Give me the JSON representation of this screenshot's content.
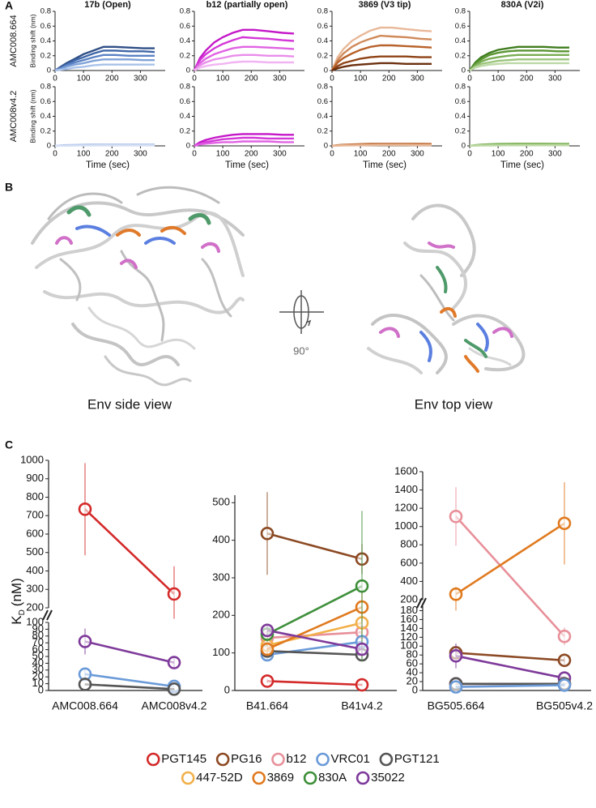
{
  "panels": {
    "a": "A",
    "b": "B",
    "c": "C"
  },
  "structure": {
    "side_view": "Env side view",
    "top_view": "Env top view",
    "rotation": "90°"
  },
  "chart_data": [
    {
      "type": "line",
      "title": "17b (Open)",
      "row_label": "AMC008.664",
      "ylabel": "Binding shift (nm)",
      "x": [
        0,
        20,
        40,
        70,
        100,
        135,
        170,
        210,
        260,
        310,
        350
      ],
      "xlim": [
        0,
        370
      ],
      "xticks": [
        0,
        100,
        200,
        300
      ],
      "ylim": [
        0,
        0.8
      ],
      "yticks": [
        0,
        0.2,
        0.4,
        0.6,
        0.8
      ],
      "series": [
        {
          "color": "#2f4f86",
          "values": [
            0,
            0.05,
            0.1,
            0.16,
            0.22,
            0.27,
            0.32,
            0.32,
            0.31,
            0.3,
            0.3
          ]
        },
        {
          "color": "#3f66a8",
          "values": [
            0,
            0.04,
            0.08,
            0.14,
            0.18,
            0.23,
            0.27,
            0.27,
            0.26,
            0.26,
            0.25
          ]
        },
        {
          "color": "#5a82c4",
          "values": [
            0,
            0.03,
            0.07,
            0.11,
            0.14,
            0.18,
            0.21,
            0.21,
            0.2,
            0.2,
            0.2
          ]
        },
        {
          "color": "#7fa2d8",
          "values": [
            0,
            0.02,
            0.05,
            0.08,
            0.1,
            0.13,
            0.15,
            0.15,
            0.15,
            0.14,
            0.14
          ]
        },
        {
          "color": "#a9c2ea",
          "values": [
            0,
            0.01,
            0.02,
            0.04,
            0.05,
            0.07,
            0.08,
            0.08,
            0.08,
            0.08,
            0.08
          ]
        }
      ]
    },
    {
      "type": "line",
      "title": "b12 (partially open)",
      "x": [
        0,
        20,
        40,
        70,
        100,
        135,
        170,
        210,
        260,
        310,
        350
      ],
      "xlim": [
        0,
        370
      ],
      "xticks": [
        0,
        100,
        200,
        300
      ],
      "ylim": [
        0,
        0.8
      ],
      "yticks": [
        0,
        0.2,
        0.4,
        0.6,
        0.8
      ],
      "series": [
        {
          "color": "#c418c8",
          "values": [
            0,
            0.17,
            0.27,
            0.38,
            0.45,
            0.51,
            0.55,
            0.55,
            0.53,
            0.51,
            0.5
          ]
        },
        {
          "color": "#d437d8",
          "values": [
            0,
            0.14,
            0.22,
            0.3,
            0.36,
            0.41,
            0.45,
            0.44,
            0.43,
            0.41,
            0.4
          ]
        },
        {
          "color": "#e063e3",
          "values": [
            0,
            0.1,
            0.16,
            0.22,
            0.26,
            0.3,
            0.32,
            0.32,
            0.31,
            0.3,
            0.29
          ]
        },
        {
          "color": "#e98ceb",
          "values": [
            0,
            0.07,
            0.11,
            0.15,
            0.17,
            0.2,
            0.21,
            0.21,
            0.2,
            0.2,
            0.19
          ]
        },
        {
          "color": "#f1b4f2",
          "values": [
            0,
            0.04,
            0.06,
            0.08,
            0.09,
            0.11,
            0.12,
            0.12,
            0.11,
            0.11,
            0.11
          ]
        }
      ]
    },
    {
      "type": "line",
      "title": "3869 (V3 tip)",
      "x": [
        0,
        20,
        40,
        70,
        100,
        135,
        170,
        210,
        260,
        310,
        350
      ],
      "xlim": [
        0,
        370
      ],
      "xticks": [
        0,
        100,
        200,
        300
      ],
      "ylim": [
        0,
        0.8
      ],
      "yticks": [
        0,
        0.2,
        0.4,
        0.6,
        0.8
      ],
      "series": [
        {
          "color": "#e8b898",
          "values": [
            0,
            0.18,
            0.29,
            0.4,
            0.47,
            0.54,
            0.58,
            0.58,
            0.56,
            0.54,
            0.53
          ]
        },
        {
          "color": "#d08a5a",
          "values": [
            0,
            0.14,
            0.23,
            0.32,
            0.38,
            0.43,
            0.47,
            0.46,
            0.45,
            0.43,
            0.42
          ]
        },
        {
          "color": "#b8622a",
          "values": [
            0,
            0.11,
            0.17,
            0.23,
            0.28,
            0.32,
            0.34,
            0.34,
            0.33,
            0.32,
            0.31
          ]
        },
        {
          "color": "#8f4316",
          "values": [
            0,
            0.06,
            0.1,
            0.13,
            0.16,
            0.18,
            0.19,
            0.19,
            0.19,
            0.18,
            0.18
          ]
        },
        {
          "color": "#6b2f0e",
          "values": [
            0,
            0.03,
            0.05,
            0.07,
            0.08,
            0.09,
            0.1,
            0.1,
            0.09,
            0.09,
            0.09
          ]
        }
      ]
    },
    {
      "type": "line",
      "title": "830A (V2i)",
      "x": [
        0,
        20,
        40,
        70,
        100,
        135,
        170,
        210,
        260,
        310,
        350
      ],
      "xlim": [
        0,
        370
      ],
      "xticks": [
        0,
        100,
        200,
        300
      ],
      "ylim": [
        0,
        0.8
      ],
      "yticks": [
        0,
        0.2,
        0.4,
        0.6,
        0.8
      ],
      "series": [
        {
          "color": "#3f7d1f",
          "values": [
            0,
            0.11,
            0.18,
            0.24,
            0.28,
            0.3,
            0.32,
            0.32,
            0.32,
            0.31,
            0.31
          ]
        },
        {
          "color": "#5a9632",
          "values": [
            0,
            0.09,
            0.15,
            0.21,
            0.24,
            0.26,
            0.27,
            0.27,
            0.27,
            0.26,
            0.26
          ]
        },
        {
          "color": "#79ad52",
          "values": [
            0,
            0.07,
            0.12,
            0.16,
            0.18,
            0.2,
            0.21,
            0.21,
            0.21,
            0.21,
            0.21
          ]
        },
        {
          "color": "#9cc57c",
          "values": [
            0,
            0.05,
            0.09,
            0.11,
            0.13,
            0.14,
            0.15,
            0.15,
            0.15,
            0.15,
            0.15
          ]
        },
        {
          "color": "#bdd9a6",
          "values": [
            0,
            0.04,
            0.06,
            0.08,
            0.09,
            0.1,
            0.1,
            0.1,
            0.1,
            0.1,
            0.1
          ]
        }
      ]
    },
    {
      "type": "line",
      "row_label": "AMC008v4.2",
      "ylabel": "Binding shift (nm)",
      "xlabel": "Time (sec)",
      "x": [
        0,
        20,
        40,
        70,
        100,
        135,
        170,
        210,
        260,
        310,
        350
      ],
      "xlim": [
        0,
        370
      ],
      "xticks": [
        0,
        100,
        200,
        300
      ],
      "ylim": [
        0,
        0.8
      ],
      "yticks": [
        0,
        0.2,
        0.4,
        0.6,
        0.8
      ],
      "series": [
        {
          "color": "#8aa5dd",
          "values": [
            0,
            0.005,
            0.01,
            0.012,
            0.014,
            0.015,
            0.015,
            0.015,
            0.015,
            0.015,
            0.015
          ]
        },
        {
          "color": "#b8c8ec",
          "values": [
            0,
            0.003,
            0.005,
            0.007,
            0.008,
            0.009,
            0.01,
            0.01,
            0.01,
            0.01,
            0.01
          ]
        },
        {
          "color": "#d6e0f5",
          "values": [
            0,
            0.002,
            0.003,
            0.004,
            0.004,
            0.005,
            0.005,
            0.005,
            0.005,
            0.005,
            0.005
          ]
        }
      ]
    },
    {
      "type": "line",
      "xlabel": "Time (sec)",
      "x": [
        0,
        20,
        40,
        70,
        100,
        135,
        170,
        210,
        260,
        310,
        350
      ],
      "xlim": [
        0,
        370
      ],
      "xticks": [
        0,
        100,
        200,
        300
      ],
      "ylim": [
        0,
        0.8
      ],
      "yticks": [
        0,
        0.2,
        0.4,
        0.6,
        0.8
      ],
      "series": [
        {
          "color": "#c418c8",
          "values": [
            0,
            0.05,
            0.08,
            0.11,
            0.13,
            0.15,
            0.16,
            0.16,
            0.16,
            0.15,
            0.15
          ]
        },
        {
          "color": "#d437d8",
          "values": [
            0,
            0.03,
            0.05,
            0.07,
            0.09,
            0.1,
            0.11,
            0.11,
            0.1,
            0.1,
            0.1
          ]
        },
        {
          "color": "#e063e3",
          "values": [
            0,
            0.02,
            0.03,
            0.04,
            0.05,
            0.05,
            0.06,
            0.06,
            0.06,
            0.05,
            0.05
          ]
        }
      ]
    },
    {
      "type": "line",
      "xlabel": "Time (sec)",
      "x": [
        0,
        20,
        40,
        70,
        100,
        135,
        170,
        210,
        260,
        310,
        350
      ],
      "xlim": [
        0,
        370
      ],
      "xticks": [
        0,
        100,
        200,
        300
      ],
      "ylim": [
        0,
        0.8
      ],
      "yticks": [
        0,
        0.2,
        0.4,
        0.6,
        0.8
      ],
      "series": [
        {
          "color": "#b8622a",
          "values": [
            0,
            0.01,
            0.015,
            0.02,
            0.024,
            0.027,
            0.029,
            0.029,
            0.028,
            0.027,
            0.026
          ]
        },
        {
          "color": "#d08a5a",
          "values": [
            0,
            0.006,
            0.01,
            0.013,
            0.016,
            0.018,
            0.019,
            0.019,
            0.019,
            0.018,
            0.018
          ]
        },
        {
          "color": "#e8b898",
          "values": [
            0,
            0.003,
            0.005,
            0.007,
            0.008,
            0.009,
            0.01,
            0.01,
            0.01,
            0.009,
            0.009
          ]
        }
      ]
    },
    {
      "type": "line",
      "xlabel": "Time (sec)",
      "x": [
        0,
        20,
        40,
        70,
        100,
        135,
        170,
        210,
        260,
        310,
        350
      ],
      "xlim": [
        0,
        370
      ],
      "xticks": [
        0,
        100,
        200,
        300
      ],
      "ylim": [
        0,
        0.8
      ],
      "yticks": [
        0,
        0.2,
        0.4,
        0.6,
        0.8
      ],
      "series": [
        {
          "color": "#79ad52",
          "values": [
            0,
            0.01,
            0.017,
            0.023,
            0.026,
            0.028,
            0.03,
            0.03,
            0.03,
            0.029,
            0.029
          ]
        },
        {
          "color": "#9cc57c",
          "values": [
            0,
            0.005,
            0.009,
            0.011,
            0.013,
            0.014,
            0.015,
            0.015,
            0.015,
            0.015,
            0.015
          ]
        },
        {
          "color": "#bdd9a6",
          "values": [
            0,
            0.003,
            0.005,
            0.006,
            0.007,
            0.008,
            0.008,
            0.008,
            0.008,
            0.008,
            0.008
          ]
        }
      ]
    },
    {
      "type": "dotline",
      "ylabel": "K",
      "ylabel_sub": "D",
      "ylabel_unit": "(nM)",
      "categories": [
        "AMC008.664",
        "AMC008v4.2"
      ],
      "y_segments": [
        {
          "ylim": [
            0,
            100
          ],
          "yticks": [
            0,
            10,
            20,
            30,
            40,
            50,
            60,
            70,
            80,
            90,
            100
          ]
        },
        {
          "ylim": [
            200,
            1000
          ],
          "yticks": [
            200,
            300,
            400,
            500,
            600,
            700,
            800,
            900,
            1000
          ]
        }
      ],
      "series": [
        {
          "color": "#d42a2a",
          "values": [
            735,
            275
          ],
          "errors": [
            250,
            150
          ]
        },
        {
          "color": "#7e3a9a",
          "values": [
            72,
            41
          ],
          "errors": [
            19,
            8
          ]
        },
        {
          "color": "#6a9ad8",
          "values": [
            24,
            6
          ],
          "errors": [
            8,
            2
          ]
        },
        {
          "color": "#555555",
          "values": [
            9,
            2
          ],
          "errors": [
            1,
            1
          ]
        }
      ]
    },
    {
      "type": "dotline",
      "categories": [
        "B41.664",
        "B41v4.2"
      ],
      "legend": "bottom",
      "ylim": [
        0,
        520
      ],
      "yticks": [
        0,
        100,
        200,
        300,
        400,
        500
      ],
      "series": [
        {
          "name": "PGT145",
          "color": "#d42a2a",
          "values": [
            25,
            15
          ],
          "errors": [
            5,
            4
          ]
        },
        {
          "name": "PG16",
          "color": "#8c4a24",
          "values": [
            418,
            350
          ],
          "errors": [
            110,
            40
          ]
        },
        {
          "name": "b12",
          "color": "#e8909a",
          "values": [
            140,
            155
          ],
          "errors": [
            20,
            25
          ]
        },
        {
          "name": "VRC01",
          "color": "#6a9ad8",
          "values": [
            95,
            130
          ],
          "errors": [
            15,
            20
          ]
        },
        {
          "name": "PGT121",
          "color": "#555555",
          "values": [
            105,
            95
          ],
          "errors": [
            10,
            10
          ]
        },
        {
          "name": "447-52D",
          "color": "#f2b04a",
          "values": [
            120,
            180
          ],
          "errors": [
            20,
            30
          ]
        },
        {
          "name": "3869",
          "color": "#e07a1f",
          "values": [
            110,
            222
          ],
          "errors": [
            15,
            40
          ]
        },
        {
          "name": "830A",
          "color": "#3e8f3a",
          "values": [
            150,
            278
          ],
          "errors": [
            20,
            200
          ]
        },
        {
          "name": "35022",
          "color": "#7e3a9a",
          "values": [
            160,
            110
          ],
          "errors": [
            15,
            15
          ]
        }
      ]
    },
    {
      "type": "dotline",
      "categories": [
        "BG505.664",
        "BG505v4.2"
      ],
      "y_segments": [
        {
          "ylim": [
            0,
            190
          ],
          "yticks": [
            0,
            20,
            40,
            60,
            80,
            100,
            120,
            140,
            160,
            180
          ]
        },
        {
          "ylim": [
            200,
            1600
          ],
          "yticks": [
            200,
            400,
            600,
            800,
            1000,
            1200,
            1400,
            1600
          ]
        }
      ],
      "series": [
        {
          "color": "#e8909a",
          "values": [
            1110,
            122
          ],
          "errors": [
            320,
            20
          ]
        },
        {
          "color": "#e07a1f",
          "values": [
            260,
            1035
          ],
          "errors": [
            80,
            450
          ]
        },
        {
          "color": "#8c4a24",
          "values": [
            85,
            68
          ],
          "errors": [
            10,
            8
          ]
        },
        {
          "color": "#7e3a9a",
          "values": [
            78,
            28
          ],
          "errors": [
            28,
            5
          ]
        },
        {
          "color": "#d42a2a",
          "values": [
            15,
            15
          ],
          "errors": [
            3,
            3
          ]
        },
        {
          "color": "#555555",
          "values": [
            15,
            15
          ],
          "errors": [
            2,
            2
          ]
        },
        {
          "color": "#6a9ad8",
          "values": [
            8,
            12
          ],
          "errors": [
            2,
            3
          ]
        }
      ]
    }
  ]
}
